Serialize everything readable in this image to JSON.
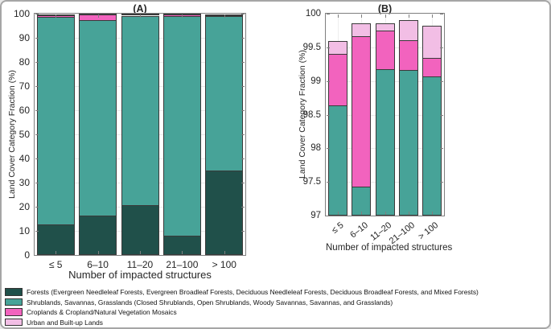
{
  "figure": {
    "background": "#ffffff",
    "description_titles": [
      "(A)",
      "(B)"
    ]
  },
  "colors": {
    "forests": "#20504A",
    "shrublands": "#47A398",
    "croplands": "#F263BE",
    "urban": "#F2BEE5",
    "bar_edge": "#3a3a3a",
    "axis": "#7f7f7f",
    "grid": "#e9e9e9",
    "text": "#262626"
  },
  "chart_data": [
    {
      "type": "bar",
      "stacked": true,
      "title": "(A)",
      "xlabel": "Number of impacted structures",
      "ylabel": "Land Cover Category Fraction (%)",
      "categories": [
        "≤ 5",
        "6–10",
        "11–20",
        "21–100",
        "> 100"
      ],
      "ylim": [
        0,
        100
      ],
      "yticks": [
        0,
        10,
        20,
        30,
        40,
        50,
        60,
        70,
        80,
        90,
        100
      ],
      "ytick_labels": [
        "0",
        "10",
        "20",
        "30",
        "40",
        "50",
        "60",
        "70",
        "80",
        "90",
        "100"
      ],
      "grid": "horizontal",
      "legend_position": "below-figure",
      "series": [
        {
          "name": "Forests",
          "color_key": "forests",
          "values": [
            12.8,
            16.3,
            20.6,
            8.0,
            34.9
          ]
        },
        {
          "name": "Shrublands, Savannas, Grasslands",
          "color_key": "shrublands",
          "values": [
            85.84,
            81.13,
            78.57,
            91.16,
            64.17
          ]
        },
        {
          "name": "Croplands & Cropland/Natural Vegetation Mosaics",
          "color_key": "croplands",
          "values": [
            0.76,
            2.24,
            0.58,
            0.45,
            0.27
          ]
        },
        {
          "name": "Urban and Built-up Lands",
          "color_key": "urban",
          "values": [
            0.2,
            0.19,
            0.11,
            0.3,
            0.48
          ]
        }
      ]
    },
    {
      "type": "bar",
      "stacked": true,
      "title": "(B)",
      "xlabel": "Number of impacted structures",
      "ylabel": "Land Cover Category Fraction (%)",
      "categories": [
        "≤ 5",
        "6–10",
        "11–20",
        "21–100",
        "> 100"
      ],
      "ylim": [
        97,
        100
      ],
      "yticks": [
        97,
        97.5,
        98,
        98.5,
        99,
        99.5,
        100
      ],
      "ytick_labels": [
        "97",
        "97.5",
        "98",
        "98.5",
        "99",
        "99.5",
        "100"
      ],
      "grid": "both",
      "xtick_rotation_deg": 38,
      "note": "zoomed y-axis; Shrublands bars extend below the 97% axis floor",
      "series": [
        {
          "name": "Shrublands, Savannas, Grasslands",
          "color_key": "shrublands",
          "values": [
            1.64,
            0.43,
            2.17,
            2.16,
            2.07
          ]
        },
        {
          "name": "Croplands & Cropland/Natural Vegetation Mosaics",
          "color_key": "croplands",
          "values": [
            0.76,
            2.24,
            0.58,
            0.45,
            0.27
          ]
        },
        {
          "name": "Urban and Built-up Lands",
          "color_key": "urban",
          "values": [
            0.2,
            0.19,
            0.11,
            0.3,
            0.48
          ]
        }
      ]
    }
  ],
  "legend": {
    "entries": [
      {
        "color_key": "forests",
        "label": "Forests (Evergreen Needleleaf Forests, Evergreen Broadleaf Forests, Deciduous Needleleaf Forests, Deciduous Broadleaf Forests, and Mixed Forests)"
      },
      {
        "color_key": "shrublands",
        "label": "Shrublands, Savannas, Grasslands (Closed Shrublands, Open Shrublands, Woody Savannas, Savannas, and Grasslands)"
      },
      {
        "color_key": "croplands",
        "label": "Croplands & Cropland/Natural Vegetation Mosaics"
      },
      {
        "color_key": "urban",
        "label": "Urban and Built-up Lands"
      }
    ]
  }
}
